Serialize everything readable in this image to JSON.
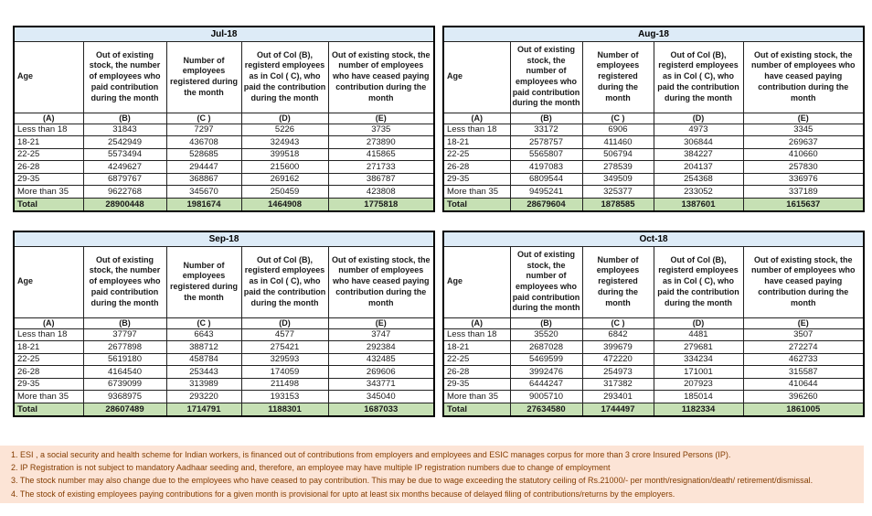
{
  "columns": {
    "age": "Age",
    "b": "Out of existing stock, the number of employees who paid contribution during the month",
    "c": "Number of employees registered during the month",
    "d": "Out of Col (B), registerd employees as in Col ( C), who paid the contribution during the month",
    "e": "Out of existing stock, the number of  employees who have ceased paying contribution during the month",
    "codes": [
      "(A)",
      "(B)",
      "(C )",
      "(D)",
      "(E)"
    ]
  },
  "tables": [
    {
      "title": "Jul-18",
      "rows": [
        [
          "Less than 18",
          "31843",
          "7297",
          "5226",
          "3735"
        ],
        [
          "18-21",
          "2542949",
          "436708",
          "324943",
          "273890"
        ],
        [
          "22-25",
          "5573494",
          "528685",
          "399518",
          "415865"
        ],
        [
          "26-28",
          "4249627",
          "294447",
          "215600",
          "271733"
        ],
        [
          "29-35",
          "6879767",
          "368867",
          "269162",
          "386787"
        ],
        [
          "More than 35",
          "9622768",
          "345670",
          "250459",
          "423808"
        ]
      ],
      "total": [
        "Total",
        "28900448",
        "1981674",
        "1464908",
        "1775818"
      ]
    },
    {
      "title": "Aug-18",
      "rows": [
        [
          "Less than 18",
          "33172",
          "6906",
          "4973",
          "3345"
        ],
        [
          "18-21",
          "2578757",
          "411460",
          "306844",
          "269637"
        ],
        [
          "22-25",
          "5565807",
          "506794",
          "384227",
          "410660"
        ],
        [
          "26-28",
          "4197083",
          "278539",
          "204137",
          "257830"
        ],
        [
          "29-35",
          "6809544",
          "349509",
          "254368",
          "336976"
        ],
        [
          "More than 35",
          "9495241",
          "325377",
          "233052",
          "337189"
        ]
      ],
      "total": [
        "Total",
        "28679604",
        "1878585",
        "1387601",
        "1615637"
      ]
    },
    {
      "title": "Sep-18",
      "rows": [
        [
          "Less than 18",
          "37797",
          "6643",
          "4577",
          "3747"
        ],
        [
          "18-21",
          "2677898",
          "388712",
          "275421",
          "292384"
        ],
        [
          "22-25",
          "5619180",
          "458784",
          "329593",
          "432485"
        ],
        [
          "26-28",
          "4164540",
          "253443",
          "174059",
          "269606"
        ],
        [
          "29-35",
          "6739099",
          "313989",
          "211498",
          "343771"
        ],
        [
          "More than 35",
          "9368975",
          "293220",
          "193153",
          "345040"
        ]
      ],
      "total": [
        "Total",
        "28607489",
        "1714791",
        "1188301",
        "1687033"
      ]
    },
    {
      "title": "Oct-18",
      "rows": [
        [
          "Less than 18",
          "35520",
          "6842",
          "4481",
          "3507"
        ],
        [
          "18-21",
          "2687028",
          "399679",
          "279681",
          "272274"
        ],
        [
          "22-25",
          "5469599",
          "472220",
          "334234",
          "462733"
        ],
        [
          "26-28",
          "3992476",
          "254973",
          "171001",
          "315587"
        ],
        [
          "29-35",
          "6444247",
          "317382",
          "207923",
          "410644"
        ],
        [
          "More than 35",
          "9005710",
          "293401",
          "185014",
          "396260"
        ]
      ],
      "total": [
        "Total",
        "27634580",
        "1744497",
        "1182334",
        "1861005"
      ]
    }
  ],
  "footnotes": [
    "1. ESI , a social security and health scheme for Indian workers, is financed out of contributions from employers and employees and ESIC manages corpus for more than 3 crore Insured Persons (IP).",
    "2. IP Registration is not subject to mandatory Aadhaar seeding and, therefore, an employee may have multiple IP registration numbers due to change of employment",
    "3. The stock number may also change due to the employees who have ceased to pay contribution. This may  be due to wage exceeding the statutory ceiling of  Rs.21000/- per month/resignation/death/ retirement/dismissal.",
    "4. The stock of existing employees paying contributions for a given month is provisional for upto at least six months because of delayed filing of contributions/returns by the employers."
  ],
  "colors": {
    "month_header_bg": "#DDEBF7",
    "total_row_bg": "#C6E0B4",
    "footnote_bg": "#FCE4D6",
    "footnote_text": "#833C00",
    "border": "#000000"
  }
}
